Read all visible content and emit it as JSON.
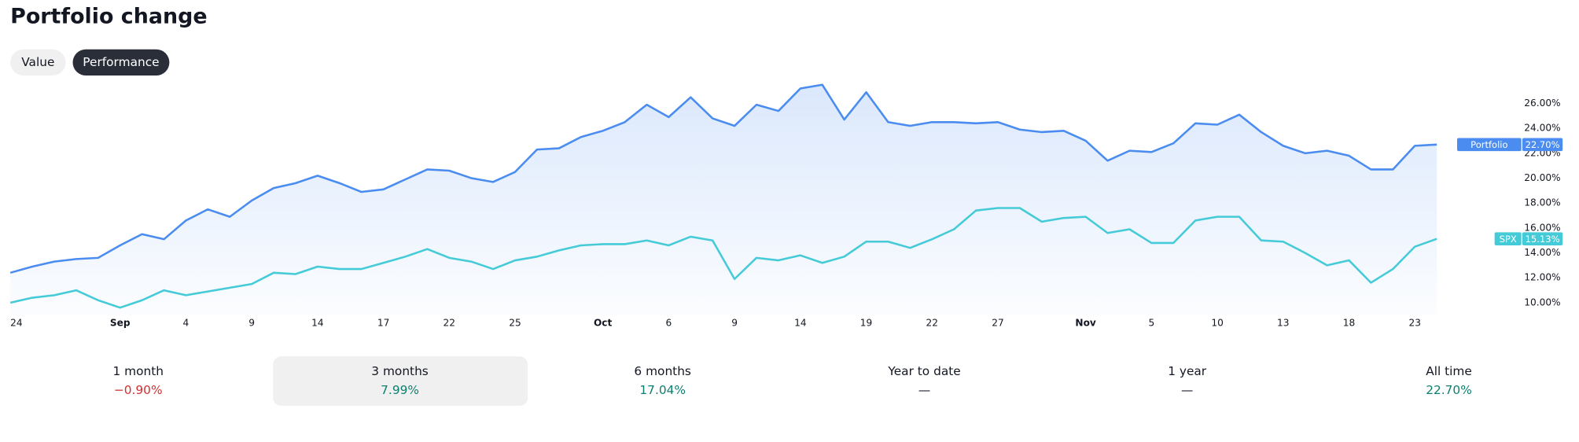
{
  "title": "Portfolio change",
  "toggle": {
    "options": [
      "Value",
      "Performance"
    ],
    "selected": 1
  },
  "chart_data": {
    "type": "line",
    "categories": [
      "24",
      null,
      null,
      null,
      null,
      "Sep",
      null,
      null,
      "4",
      null,
      null,
      "9",
      null,
      null,
      "14",
      null,
      null,
      "17",
      null,
      null,
      "22",
      null,
      null,
      "25",
      null,
      null,
      null,
      "Oct",
      null,
      null,
      "6",
      null,
      null,
      "9",
      null,
      null,
      "14",
      null,
      null,
      "19",
      null,
      null,
      "22",
      null,
      null,
      "27",
      null,
      null,
      null,
      "Nov",
      null,
      null,
      "5",
      null,
      null,
      "10",
      null,
      null,
      "13",
      null,
      null,
      "18",
      null,
      null,
      "23",
      null
    ],
    "series": [
      {
        "name": "Portfolio",
        "color": "#4a8cf0",
        "area": true,
        "last_value_label": "22.70%",
        "values": [
          12.4,
          12.9,
          13.3,
          13.5,
          13.6,
          14.6,
          15.5,
          15.1,
          16.6,
          17.5,
          16.9,
          18.2,
          19.2,
          19.6,
          20.2,
          19.6,
          18.9,
          19.1,
          19.9,
          20.7,
          20.6,
          20.0,
          19.7,
          20.5,
          22.3,
          22.4,
          23.3,
          23.8,
          24.5,
          25.9,
          24.9,
          26.5,
          24.8,
          24.2,
          25.9,
          25.4,
          27.2,
          27.5,
          24.7,
          26.9,
          24.5,
          24.2,
          24.5,
          24.5,
          24.4,
          24.5,
          23.9,
          23.7,
          23.8,
          23.0,
          21.4,
          22.2,
          22.1,
          22.8,
          24.4,
          24.3,
          25.1,
          23.7,
          22.6,
          22.0,
          22.2,
          21.8,
          20.7,
          20.7,
          22.6,
          22.7
        ]
      },
      {
        "name": "SPX",
        "color": "#45cbd8",
        "area": false,
        "last_value_label": "15.13%",
        "values": [
          10.0,
          10.4,
          10.6,
          11.0,
          10.2,
          9.6,
          10.2,
          11.0,
          10.6,
          10.9,
          11.2,
          11.5,
          12.4,
          12.3,
          12.9,
          12.7,
          12.7,
          13.2,
          13.7,
          14.3,
          13.6,
          13.3,
          12.7,
          13.4,
          13.7,
          14.2,
          14.6,
          14.7,
          14.7,
          15.0,
          14.6,
          15.3,
          15.0,
          11.9,
          13.6,
          13.4,
          13.8,
          13.2,
          13.7,
          14.9,
          14.9,
          14.4,
          15.1,
          15.9,
          17.4,
          17.6,
          17.6,
          16.5,
          16.8,
          16.9,
          15.6,
          15.9,
          14.8,
          14.8,
          16.6,
          16.9,
          16.9,
          15.0,
          14.9,
          14.0,
          13.0,
          13.4,
          11.6,
          12.7,
          14.5,
          15.13
        ]
      }
    ],
    "ylim": [
      9,
      28
    ],
    "yticks": [
      {
        "value": 10,
        "label": "10.00%"
      },
      {
        "value": 12,
        "label": "12.00%"
      },
      {
        "value": 14,
        "label": "14.00%"
      },
      {
        "value": 16,
        "label": "16.00%"
      },
      {
        "value": 18,
        "label": "18.00%"
      },
      {
        "value": 20,
        "label": "20.00%"
      },
      {
        "value": 22,
        "label": "22.00%"
      },
      {
        "value": 24,
        "label": "24.00%"
      },
      {
        "value": 26,
        "label": "26.00%"
      }
    ],
    "grid": false
  },
  "periods": {
    "selected": 1,
    "items": [
      {
        "label": "1 month",
        "value": -0.9,
        "value_label": "−0.90%"
      },
      {
        "label": "3 months",
        "value": 7.99,
        "value_label": "7.99%"
      },
      {
        "label": "6 months",
        "value": 17.04,
        "value_label": "17.04%"
      },
      {
        "label": "Year to date",
        "value": null,
        "value_label": "—"
      },
      {
        "label": "1 year",
        "value": null,
        "value_label": "—"
      },
      {
        "label": "All time",
        "value": 22.7,
        "value_label": "22.70%"
      }
    ]
  }
}
